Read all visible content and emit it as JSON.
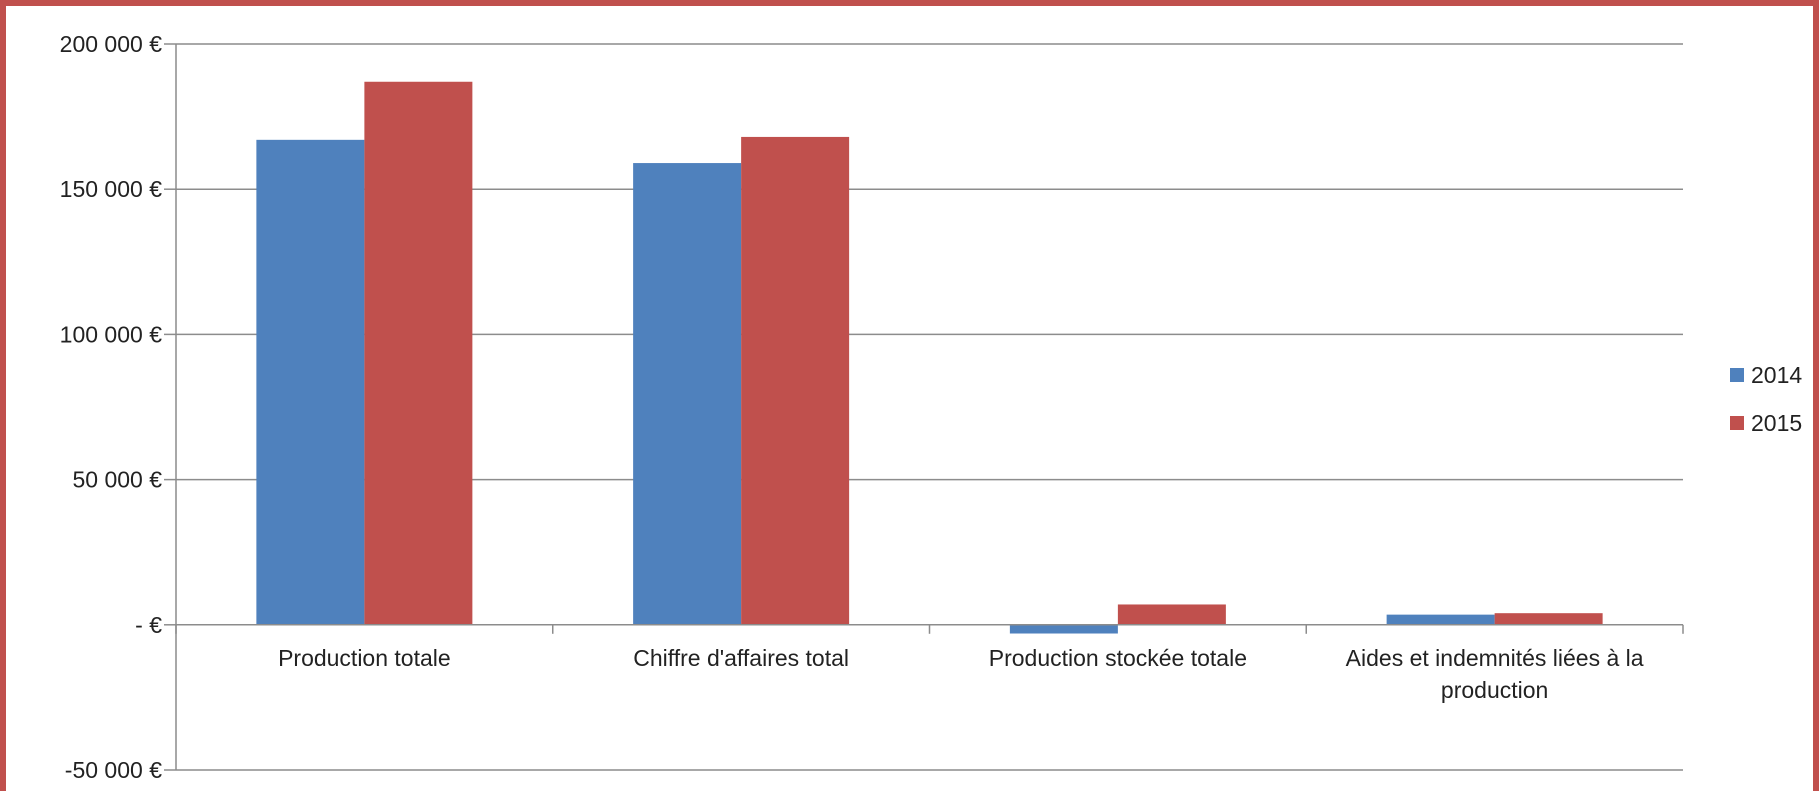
{
  "chart_data": {
    "type": "bar",
    "categories": [
      [
        "Production totale"
      ],
      [
        "Chiffre d'affaires total"
      ],
      [
        "Production stockée totale"
      ],
      [
        "Aides et indemnités liées à la",
        "production"
      ]
    ],
    "series": [
      {
        "name": "2014",
        "values": [
          167000,
          159000,
          -3000,
          3500
        ],
        "color": "#4f81bd"
      },
      {
        "name": "2015",
        "values": [
          187000,
          168000,
          7000,
          4000
        ],
        "color": "#c0504d"
      }
    ],
    "ylim": [
      -50000,
      200000
    ],
    "yticks": [
      200000,
      150000,
      100000,
      50000,
      0,
      -50000
    ],
    "ytick_labels": [
      "200 000 €",
      "150 000 €",
      "100 000 €",
      "50 000 €",
      "-   €",
      "-50 000 €"
    ],
    "grid": true,
    "legend_position": "right",
    "border_color": "#c0504d"
  }
}
